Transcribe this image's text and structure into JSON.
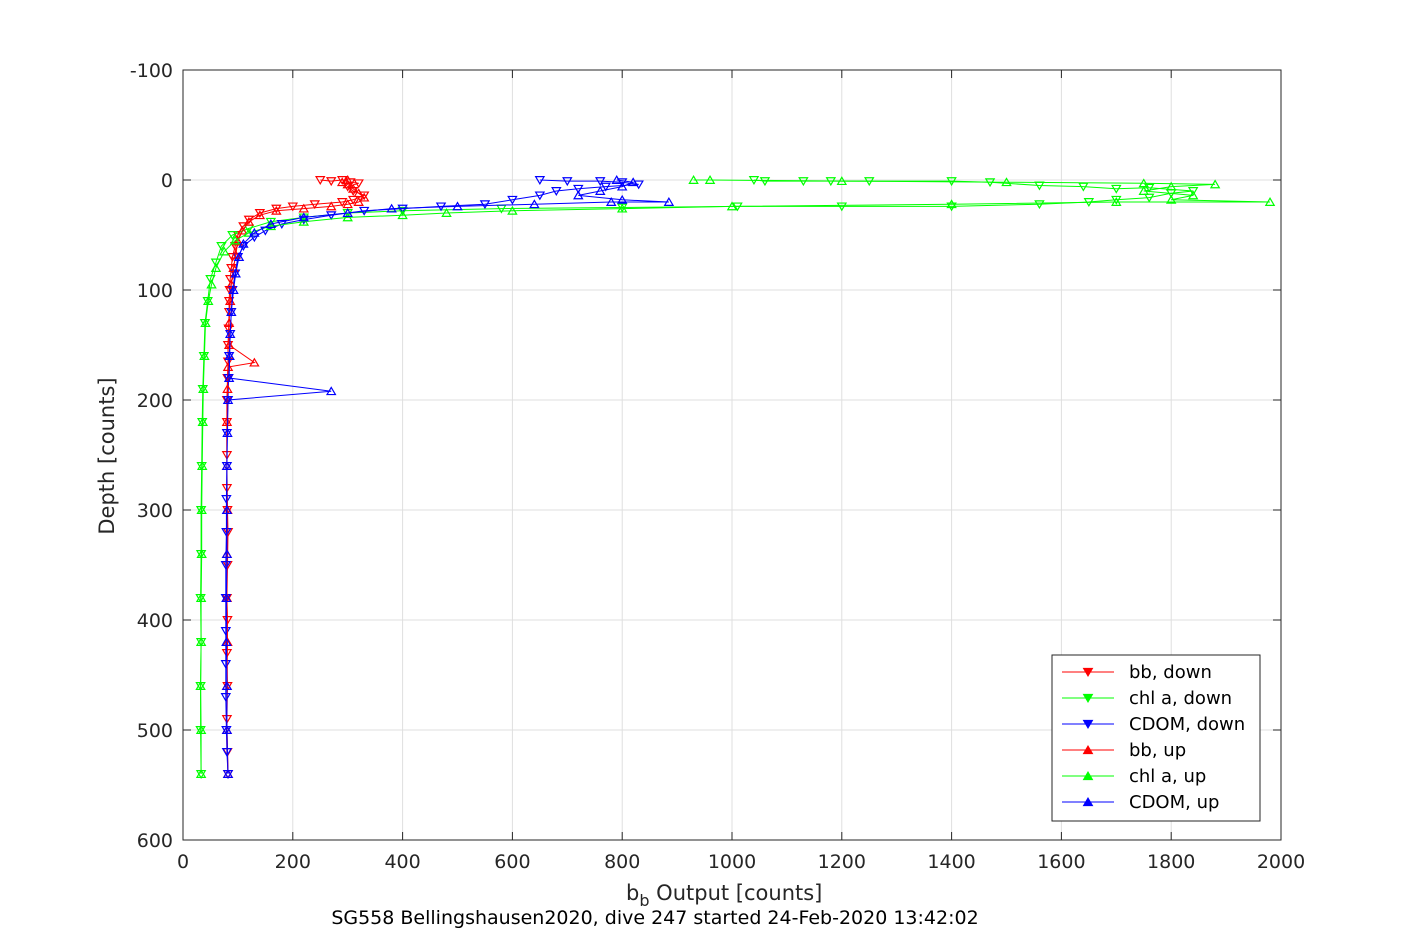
{
  "caption": "SG558 Bellingshausen2020, dive 247 started 24-Feb-2020 13:42:02",
  "chart_data": {
    "type": "line",
    "xlabel": "b",
    "xlabel_sub": "b",
    "xlabel_rest": " Output [counts]",
    "ylabel": "Depth [counts]",
    "xlim": [
      0,
      2000
    ],
    "ylim": [
      -100,
      600
    ],
    "y_reversed": true,
    "grid": true,
    "xticks": [
      0,
      200,
      400,
      600,
      800,
      1000,
      1200,
      1400,
      1600,
      1800,
      2000
    ],
    "yticks": [
      -100,
      0,
      100,
      200,
      300,
      400,
      500,
      600
    ],
    "legend_position": "bottom-right",
    "series": [
      {
        "name": "bb, down",
        "color": "#ff0000",
        "marker": "triangle-down",
        "points": [
          [
            250,
            0
          ],
          [
            270,
            1
          ],
          [
            290,
            0
          ],
          [
            305,
            2
          ],
          [
            320,
            3
          ],
          [
            300,
            6
          ],
          [
            310,
            10
          ],
          [
            330,
            14
          ],
          [
            310,
            18
          ],
          [
            290,
            20
          ],
          [
            240,
            22
          ],
          [
            200,
            24
          ],
          [
            170,
            26
          ],
          [
            140,
            30
          ],
          [
            120,
            36
          ],
          [
            110,
            42
          ],
          [
            100,
            50
          ],
          [
            95,
            60
          ],
          [
            90,
            70
          ],
          [
            88,
            80
          ],
          [
            86,
            90
          ],
          [
            85,
            100
          ],
          [
            84,
            110
          ],
          [
            84,
            120
          ],
          [
            83,
            135
          ],
          [
            82,
            150
          ],
          [
            82,
            165
          ],
          [
            81,
            180
          ],
          [
            80,
            200
          ],
          [
            80,
            220
          ],
          [
            80,
            250
          ],
          [
            80,
            280
          ],
          [
            81,
            300
          ],
          [
            82,
            320
          ],
          [
            81,
            350
          ],
          [
            80,
            380
          ],
          [
            81,
            400
          ],
          [
            80,
            430
          ],
          [
            81,
            460
          ],
          [
            80,
            490
          ],
          [
            81,
            520
          ],
          [
            82,
            540
          ]
        ]
      },
      {
        "name": "chl a, down",
        "color": "#00ff00",
        "marker": "triangle-down",
        "points": [
          [
            1040,
            0
          ],
          [
            1060,
            1
          ],
          [
            1130,
            1
          ],
          [
            1180,
            1
          ],
          [
            1250,
            1
          ],
          [
            1400,
            1
          ],
          [
            1470,
            2
          ],
          [
            1560,
            5
          ],
          [
            1640,
            6
          ],
          [
            1700,
            8
          ],
          [
            1760,
            7
          ],
          [
            1840,
            10
          ],
          [
            1800,
            12
          ],
          [
            1760,
            16
          ],
          [
            1700,
            18
          ],
          [
            1650,
            20
          ],
          [
            1560,
            22
          ],
          [
            1400,
            24
          ],
          [
            1200,
            24
          ],
          [
            1010,
            24
          ],
          [
            800,
            25
          ],
          [
            580,
            26
          ],
          [
            400,
            28
          ],
          [
            300,
            30
          ],
          [
            220,
            34
          ],
          [
            160,
            38
          ],
          [
            120,
            44
          ],
          [
            90,
            50
          ],
          [
            70,
            60
          ],
          [
            60,
            75
          ],
          [
            50,
            90
          ],
          [
            45,
            110
          ],
          [
            40,
            130
          ],
          [
            38,
            160
          ],
          [
            36,
            190
          ],
          [
            35,
            220
          ],
          [
            34,
            260
          ],
          [
            33,
            300
          ],
          [
            33,
            340
          ],
          [
            32,
            380
          ],
          [
            33,
            420
          ],
          [
            32,
            460
          ],
          [
            32,
            500
          ],
          [
            33,
            540
          ]
        ]
      },
      {
        "name": "CDOM, down",
        "color": "#0000ff",
        "marker": "triangle-down",
        "points": [
          [
            650,
            0
          ],
          [
            700,
            1
          ],
          [
            760,
            1
          ],
          [
            800,
            2
          ],
          [
            830,
            4
          ],
          [
            770,
            6
          ],
          [
            720,
            8
          ],
          [
            680,
            10
          ],
          [
            650,
            14
          ],
          [
            600,
            18
          ],
          [
            550,
            22
          ],
          [
            470,
            24
          ],
          [
            400,
            26
          ],
          [
            330,
            28
          ],
          [
            270,
            32
          ],
          [
            220,
            36
          ],
          [
            180,
            40
          ],
          [
            150,
            46
          ],
          [
            130,
            52
          ],
          [
            110,
            60
          ],
          [
            100,
            70
          ],
          [
            95,
            85
          ],
          [
            90,
            100
          ],
          [
            88,
            120
          ],
          [
            86,
            140
          ],
          [
            84,
            160
          ],
          [
            83,
            180
          ],
          [
            82,
            200
          ],
          [
            80,
            230
          ],
          [
            80,
            260
          ],
          [
            79,
            290
          ],
          [
            79,
            320
          ],
          [
            78,
            350
          ],
          [
            78,
            380
          ],
          [
            78,
            410
          ],
          [
            78,
            440
          ],
          [
            78,
            470
          ],
          [
            79,
            500
          ],
          [
            80,
            520
          ],
          [
            82,
            540
          ]
        ]
      },
      {
        "name": "bb, up",
        "color": "#ff0000",
        "marker": "triangle-up",
        "points": [
          [
            82,
            540
          ],
          [
            80,
            500
          ],
          [
            80,
            460
          ],
          [
            81,
            420
          ],
          [
            80,
            380
          ],
          [
            80,
            340
          ],
          [
            81,
            300
          ],
          [
            80,
            260
          ],
          [
            80,
            220
          ],
          [
            81,
            190
          ],
          [
            82,
            170
          ],
          [
            130,
            166
          ],
          [
            84,
            150
          ],
          [
            84,
            130
          ],
          [
            86,
            110
          ],
          [
            88,
            95
          ],
          [
            92,
            80
          ],
          [
            96,
            68
          ],
          [
            100,
            56
          ],
          [
            108,
            46
          ],
          [
            120,
            38
          ],
          [
            140,
            32
          ],
          [
            170,
            28
          ],
          [
            220,
            26
          ],
          [
            270,
            24
          ],
          [
            300,
            22
          ],
          [
            320,
            20
          ],
          [
            330,
            16
          ],
          [
            320,
            12
          ],
          [
            310,
            8
          ],
          [
            300,
            4
          ],
          [
            290,
            2
          ],
          [
            300,
            0
          ]
        ]
      },
      {
        "name": "chl a, up",
        "color": "#00ff00",
        "marker": "triangle-up",
        "points": [
          [
            33,
            540
          ],
          [
            33,
            500
          ],
          [
            32,
            460
          ],
          [
            33,
            420
          ],
          [
            33,
            380
          ],
          [
            34,
            340
          ],
          [
            34,
            300
          ],
          [
            35,
            260
          ],
          [
            36,
            220
          ],
          [
            37,
            190
          ],
          [
            39,
            160
          ],
          [
            41,
            130
          ],
          [
            46,
            110
          ],
          [
            52,
            95
          ],
          [
            60,
            80
          ],
          [
            75,
            65
          ],
          [
            95,
            55
          ],
          [
            120,
            48
          ],
          [
            160,
            42
          ],
          [
            220,
            38
          ],
          [
            300,
            34
          ],
          [
            400,
            32
          ],
          [
            480,
            30
          ],
          [
            600,
            28
          ],
          [
            800,
            26
          ],
          [
            1000,
            24
          ],
          [
            1400,
            22
          ],
          [
            1700,
            20
          ],
          [
            1980,
            20
          ],
          [
            1800,
            18
          ],
          [
            1840,
            14
          ],
          [
            1750,
            10
          ],
          [
            1800,
            6
          ],
          [
            1880,
            4
          ],
          [
            1750,
            3
          ],
          [
            1500,
            2
          ],
          [
            1200,
            1
          ],
          [
            960,
            0
          ],
          [
            930,
            0
          ]
        ]
      },
      {
        "name": "CDOM, up",
        "color": "#0000ff",
        "marker": "triangle-up",
        "points": [
          [
            82,
            540
          ],
          [
            80,
            500
          ],
          [
            80,
            460
          ],
          [
            79,
            420
          ],
          [
            79,
            380
          ],
          [
            80,
            340
          ],
          [
            80,
            300
          ],
          [
            80,
            260
          ],
          [
            81,
            230
          ],
          [
            82,
            200
          ],
          [
            270,
            192
          ],
          [
            84,
            180
          ],
          [
            85,
            160
          ],
          [
            86,
            140
          ],
          [
            88,
            120
          ],
          [
            92,
            100
          ],
          [
            96,
            85
          ],
          [
            102,
            70
          ],
          [
            110,
            58
          ],
          [
            130,
            48
          ],
          [
            160,
            40
          ],
          [
            220,
            34
          ],
          [
            300,
            30
          ],
          [
            380,
            26
          ],
          [
            500,
            24
          ],
          [
            640,
            22
          ],
          [
            780,
            20
          ],
          [
            885,
            20
          ],
          [
            800,
            18
          ],
          [
            720,
            14
          ],
          [
            760,
            10
          ],
          [
            800,
            6
          ],
          [
            820,
            2
          ],
          [
            790,
            0
          ]
        ]
      }
    ]
  }
}
